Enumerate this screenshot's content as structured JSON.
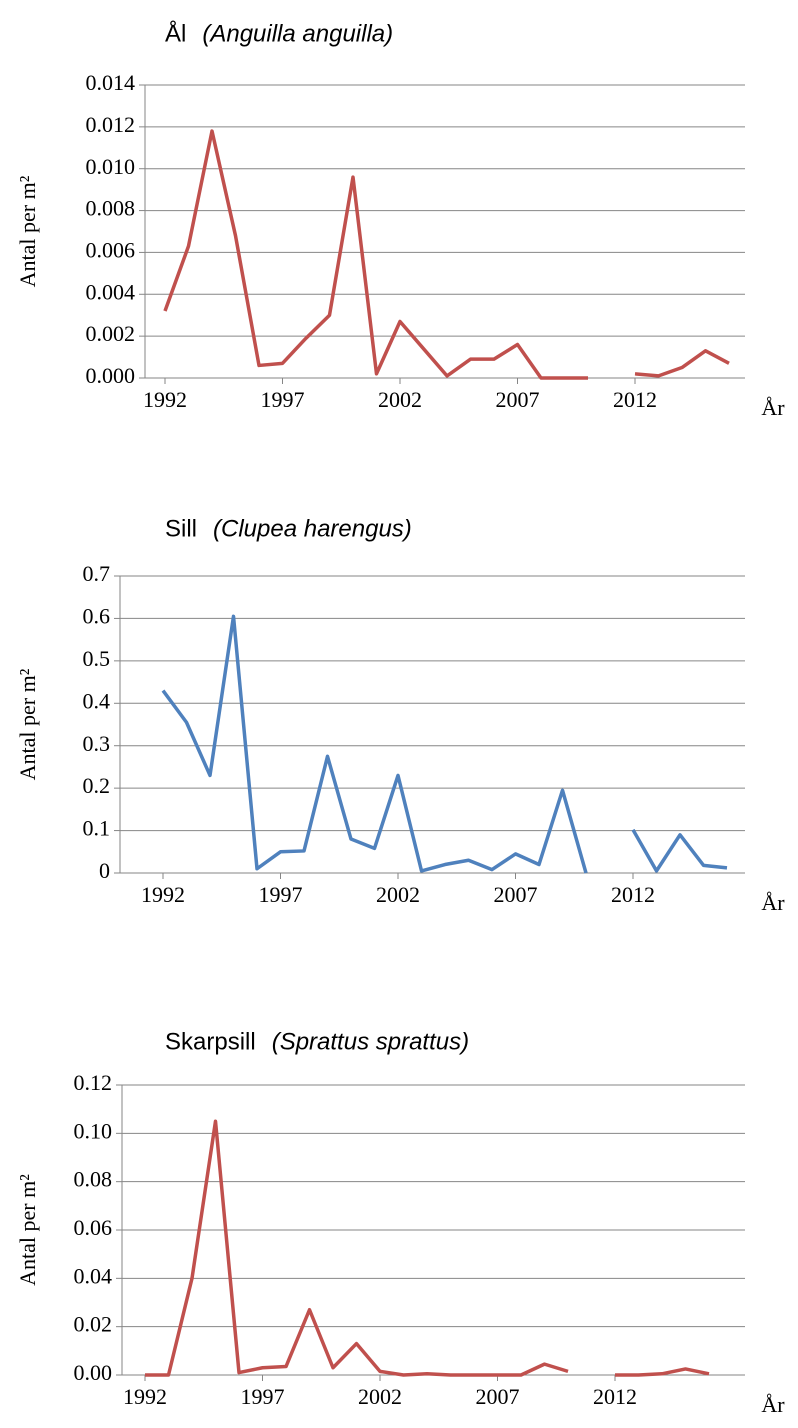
{
  "chart_data": [
    {
      "type": "line",
      "title": "Ål",
      "subtitle": "(Anguilla anguilla)",
      "ylabel": "Antal per m²",
      "xlabel": "År",
      "categories": [
        "1992",
        null,
        null,
        null,
        null,
        "1997",
        null,
        null,
        null,
        null,
        "2002",
        null,
        null,
        null,
        null,
        "2007",
        null,
        null,
        null,
        null,
        "2012",
        null,
        null,
        null,
        null
      ],
      "series": [
        {
          "name": "Ål",
          "color": "#c0504d",
          "values": [
            0.0032,
            0.0063,
            0.0118,
            0.0068,
            0.0006,
            0.0007,
            0.0019,
            0.003,
            0.0096,
            0.0002,
            0.0027,
            0.0014,
            0.0001,
            0.0009,
            0.0009,
            0.0016,
            0,
            0,
            0,
            null,
            0.0002,
            0.0001,
            0.0005,
            0.0013,
            0.0007
          ]
        }
      ],
      "ylim": [
        0,
        0.014
      ],
      "yticks": [
        {
          "value": 0,
          "label": "0.000"
        },
        {
          "value": 0.002,
          "label": "0.002"
        },
        {
          "value": 0.004,
          "label": "0.004"
        },
        {
          "value": 0.006,
          "label": "0.006"
        },
        {
          "value": 0.008,
          "label": "0.008"
        },
        {
          "value": 0.01,
          "label": "0.010"
        },
        {
          "value": 0.012,
          "label": "0.012"
        },
        {
          "value": 0.014,
          "label": "0.014"
        }
      ],
      "grid": true
    },
    {
      "type": "line",
      "title": "Sill",
      "subtitle": "(Clupea harengus)",
      "ylabel": "Antal per m²",
      "xlabel": "År",
      "categories": [
        "1992",
        null,
        null,
        null,
        null,
        "1997",
        null,
        null,
        null,
        null,
        "2002",
        null,
        null,
        null,
        null,
        "2007",
        null,
        null,
        null,
        null,
        "2012",
        null,
        null,
        null,
        null
      ],
      "series": [
        {
          "name": "Sill",
          "color": "#4f81bd",
          "values": [
            0.43,
            0.355,
            0.23,
            0.605,
            0.01,
            0.05,
            0.052,
            0.275,
            0.08,
            0.058,
            0.23,
            0.005,
            0.02,
            0.03,
            0.008,
            0.045,
            0.02,
            0.195,
            0,
            null,
            0.102,
            0.005,
            0.09,
            0.018,
            0.012
          ]
        }
      ],
      "ylim": [
        0,
        0.7
      ],
      "yticks": [
        0,
        0.1,
        0.2,
        0.3,
        0.4,
        0.5,
        0.6,
        0.7
      ],
      "grid": true
    },
    {
      "type": "line",
      "title": "Skarpsill",
      "subtitle": "(Sprattus sprattus)",
      "ylabel": "Antal per m²",
      "xlabel": "År",
      "categories": [
        "1992",
        null,
        null,
        null,
        null,
        "1997",
        null,
        null,
        null,
        null,
        "2002",
        null,
        null,
        null,
        null,
        "2007",
        null,
        null,
        null,
        null,
        "2012",
        null,
        null,
        null,
        null
      ],
      "series": [
        {
          "name": "Skarpsill",
          "color": "#c0504d",
          "values": [
            0,
            0,
            0.04,
            0.105,
            0.001,
            0.003,
            0.0035,
            0.027,
            0.003,
            0.013,
            0.0015,
            0,
            0.0005,
            0,
            0,
            0,
            0,
            0.0045,
            0.0015,
            null,
            0,
            0,
            0.0005,
            0.0025,
            0.0005
          ]
        }
      ],
      "ylim": [
        0,
        0.12
      ],
      "yticks": [
        {
          "value": 0,
          "label": "0.00"
        },
        {
          "value": 0.02,
          "label": "0.02"
        },
        {
          "value": 0.04,
          "label": "0.04"
        },
        {
          "value": 0.06,
          "label": "0.06"
        },
        {
          "value": 0.08,
          "label": "0.08"
        },
        {
          "value": 0.1,
          "label": "0.10"
        },
        {
          "value": 0.12,
          "label": "0.12"
        }
      ],
      "grid": true
    }
  ]
}
